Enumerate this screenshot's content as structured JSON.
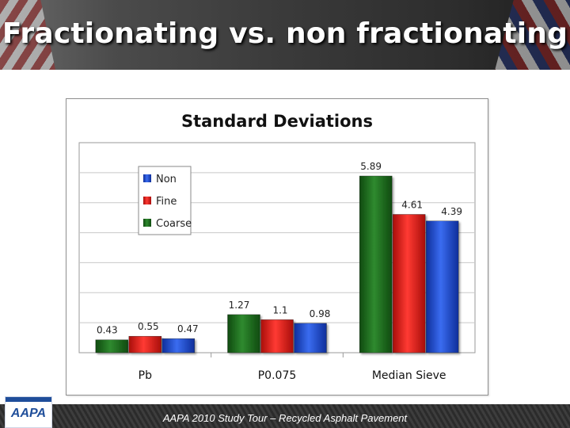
{
  "slide": {
    "title": "Fractionating vs. non fractionating",
    "footer": "AAPA 2010 Study Tour – Recycled Asphalt Pavement",
    "logo_text": "AAPA"
  },
  "chart_data": {
    "type": "bar",
    "title": "Standard Deviations",
    "xlabel": "",
    "ylabel": "",
    "categories": [
      "Pb",
      "P0.075",
      "Median Sieve"
    ],
    "series": [
      {
        "name": "Non",
        "color": "#1f4fd1",
        "values": [
          0.47,
          0.98,
          4.39
        ]
      },
      {
        "name": "Fine",
        "color": "#e0201b",
        "values": [
          0.55,
          1.1,
          4.61
        ]
      },
      {
        "name": "Coarse",
        "color": "#1f6b1f",
        "values": [
          0.43,
          1.27,
          5.89
        ]
      }
    ],
    "bar_order": [
      "Coarse",
      "Fine",
      "Non"
    ],
    "data_labels": [
      [
        "0.43",
        "0.55",
        "0.47"
      ],
      [
        "1.27",
        "1.1",
        "0.98"
      ],
      [
        "5.89",
        "4.61",
        "4.39"
      ]
    ],
    "ylim": [
      0,
      7
    ],
    "grid": true,
    "legend_position": "top-left"
  }
}
